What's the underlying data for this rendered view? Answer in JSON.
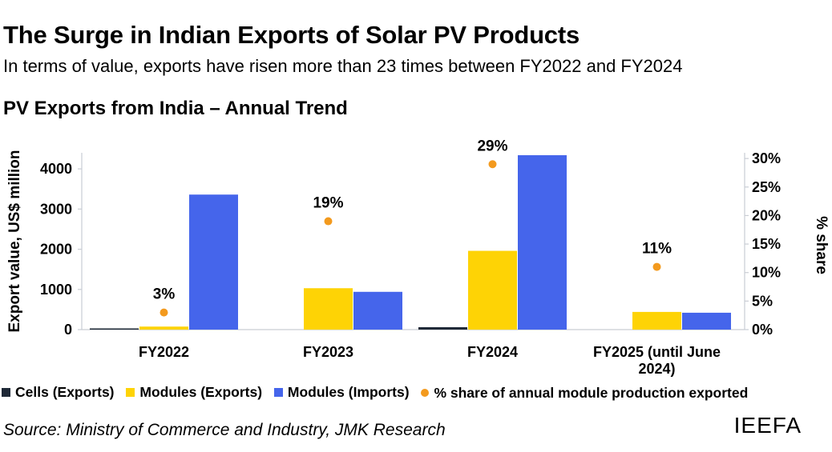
{
  "header": {
    "title": "The Surge in Indian Exports of Solar PV Products",
    "subtitle": "In terms of value, exports have risen more than 23 times between FY2022 and FY2024",
    "chart_title": "PV Exports from India – Annual Trend"
  },
  "chart_data": {
    "type": "bar",
    "title": "PV Exports from India – Annual Trend",
    "categories": [
      "FY2022",
      "FY2023",
      "FY2024",
      "FY2025 (until June 2024)"
    ],
    "category_lines": [
      [
        "FY2022"
      ],
      [
        "FY2023"
      ],
      [
        "FY2024"
      ],
      [
        "FY2025 (until June",
        "2024)"
      ]
    ],
    "ylabel": "Export value, US$ million",
    "y2label": "% share",
    "ylim": [
      0,
      4400
    ],
    "yticks": [
      0,
      1000,
      2000,
      3000,
      4000
    ],
    "y2lim": [
      0,
      0.31
    ],
    "y2ticks": [
      "0%",
      "5%",
      "10%",
      "15%",
      "20%",
      "25%",
      "30%"
    ],
    "y2tick_values": [
      0,
      0.05,
      0.1,
      0.15,
      0.2,
      0.25,
      0.3
    ],
    "series": [
      {
        "name": "Cells (Exports)",
        "values": [
          25,
          0,
          60,
          0
        ],
        "color": "#1f2937",
        "axis": "left"
      },
      {
        "name": "Modules (Exports)",
        "values": [
          75,
          1030,
          1960,
          440
        ],
        "color": "#fed305",
        "axis": "left"
      },
      {
        "name": "Modules (Imports)",
        "values": [
          3360,
          940,
          4340,
          420
        ],
        "color": "#4565eb",
        "axis": "left"
      }
    ],
    "share_series": {
      "name": "% share of annual module production exported",
      "values": [
        0.03,
        0.19,
        0.29,
        0.11
      ],
      "labels": [
        "3%",
        "19%",
        "29%",
        "11%"
      ],
      "color": "#f39a1e",
      "axis": "right"
    },
    "grid": false,
    "legend_position": "bottom"
  },
  "legend": {
    "items": [
      {
        "label": "Cells (Exports)",
        "color": "#1f2937",
        "shape": "square"
      },
      {
        "label": "Modules (Exports)",
        "color": "#fed305",
        "shape": "square"
      },
      {
        "label": "Modules (Imports)",
        "color": "#4565eb",
        "shape": "square"
      },
      {
        "label": "% share of annual module production exported",
        "color": "#f39a1e",
        "shape": "dot"
      }
    ]
  },
  "footer": {
    "source": "Source: Ministry of Commerce and Industry, JMK Research",
    "brand": "IEEFA"
  }
}
